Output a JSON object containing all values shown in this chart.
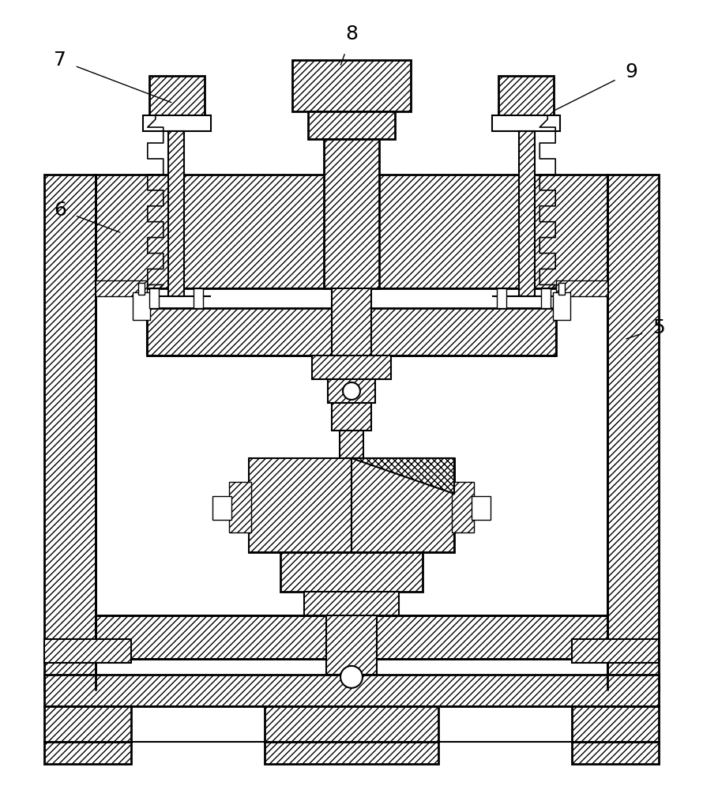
{
  "background_color": "#ffffff",
  "line_color": "#000000",
  "label_color": "#000000",
  "labels": [
    "5",
    "6",
    "7",
    "8",
    "9"
  ],
  "label_fontsize": 18,
  "figsize": [
    8.9,
    10.0
  ],
  "dpi": 100,
  "lw_thick": 2.0,
  "lw_med": 1.5,
  "lw_thin": 1.0,
  "hatch_dense": "////",
  "hatch_cross": "xxxx"
}
